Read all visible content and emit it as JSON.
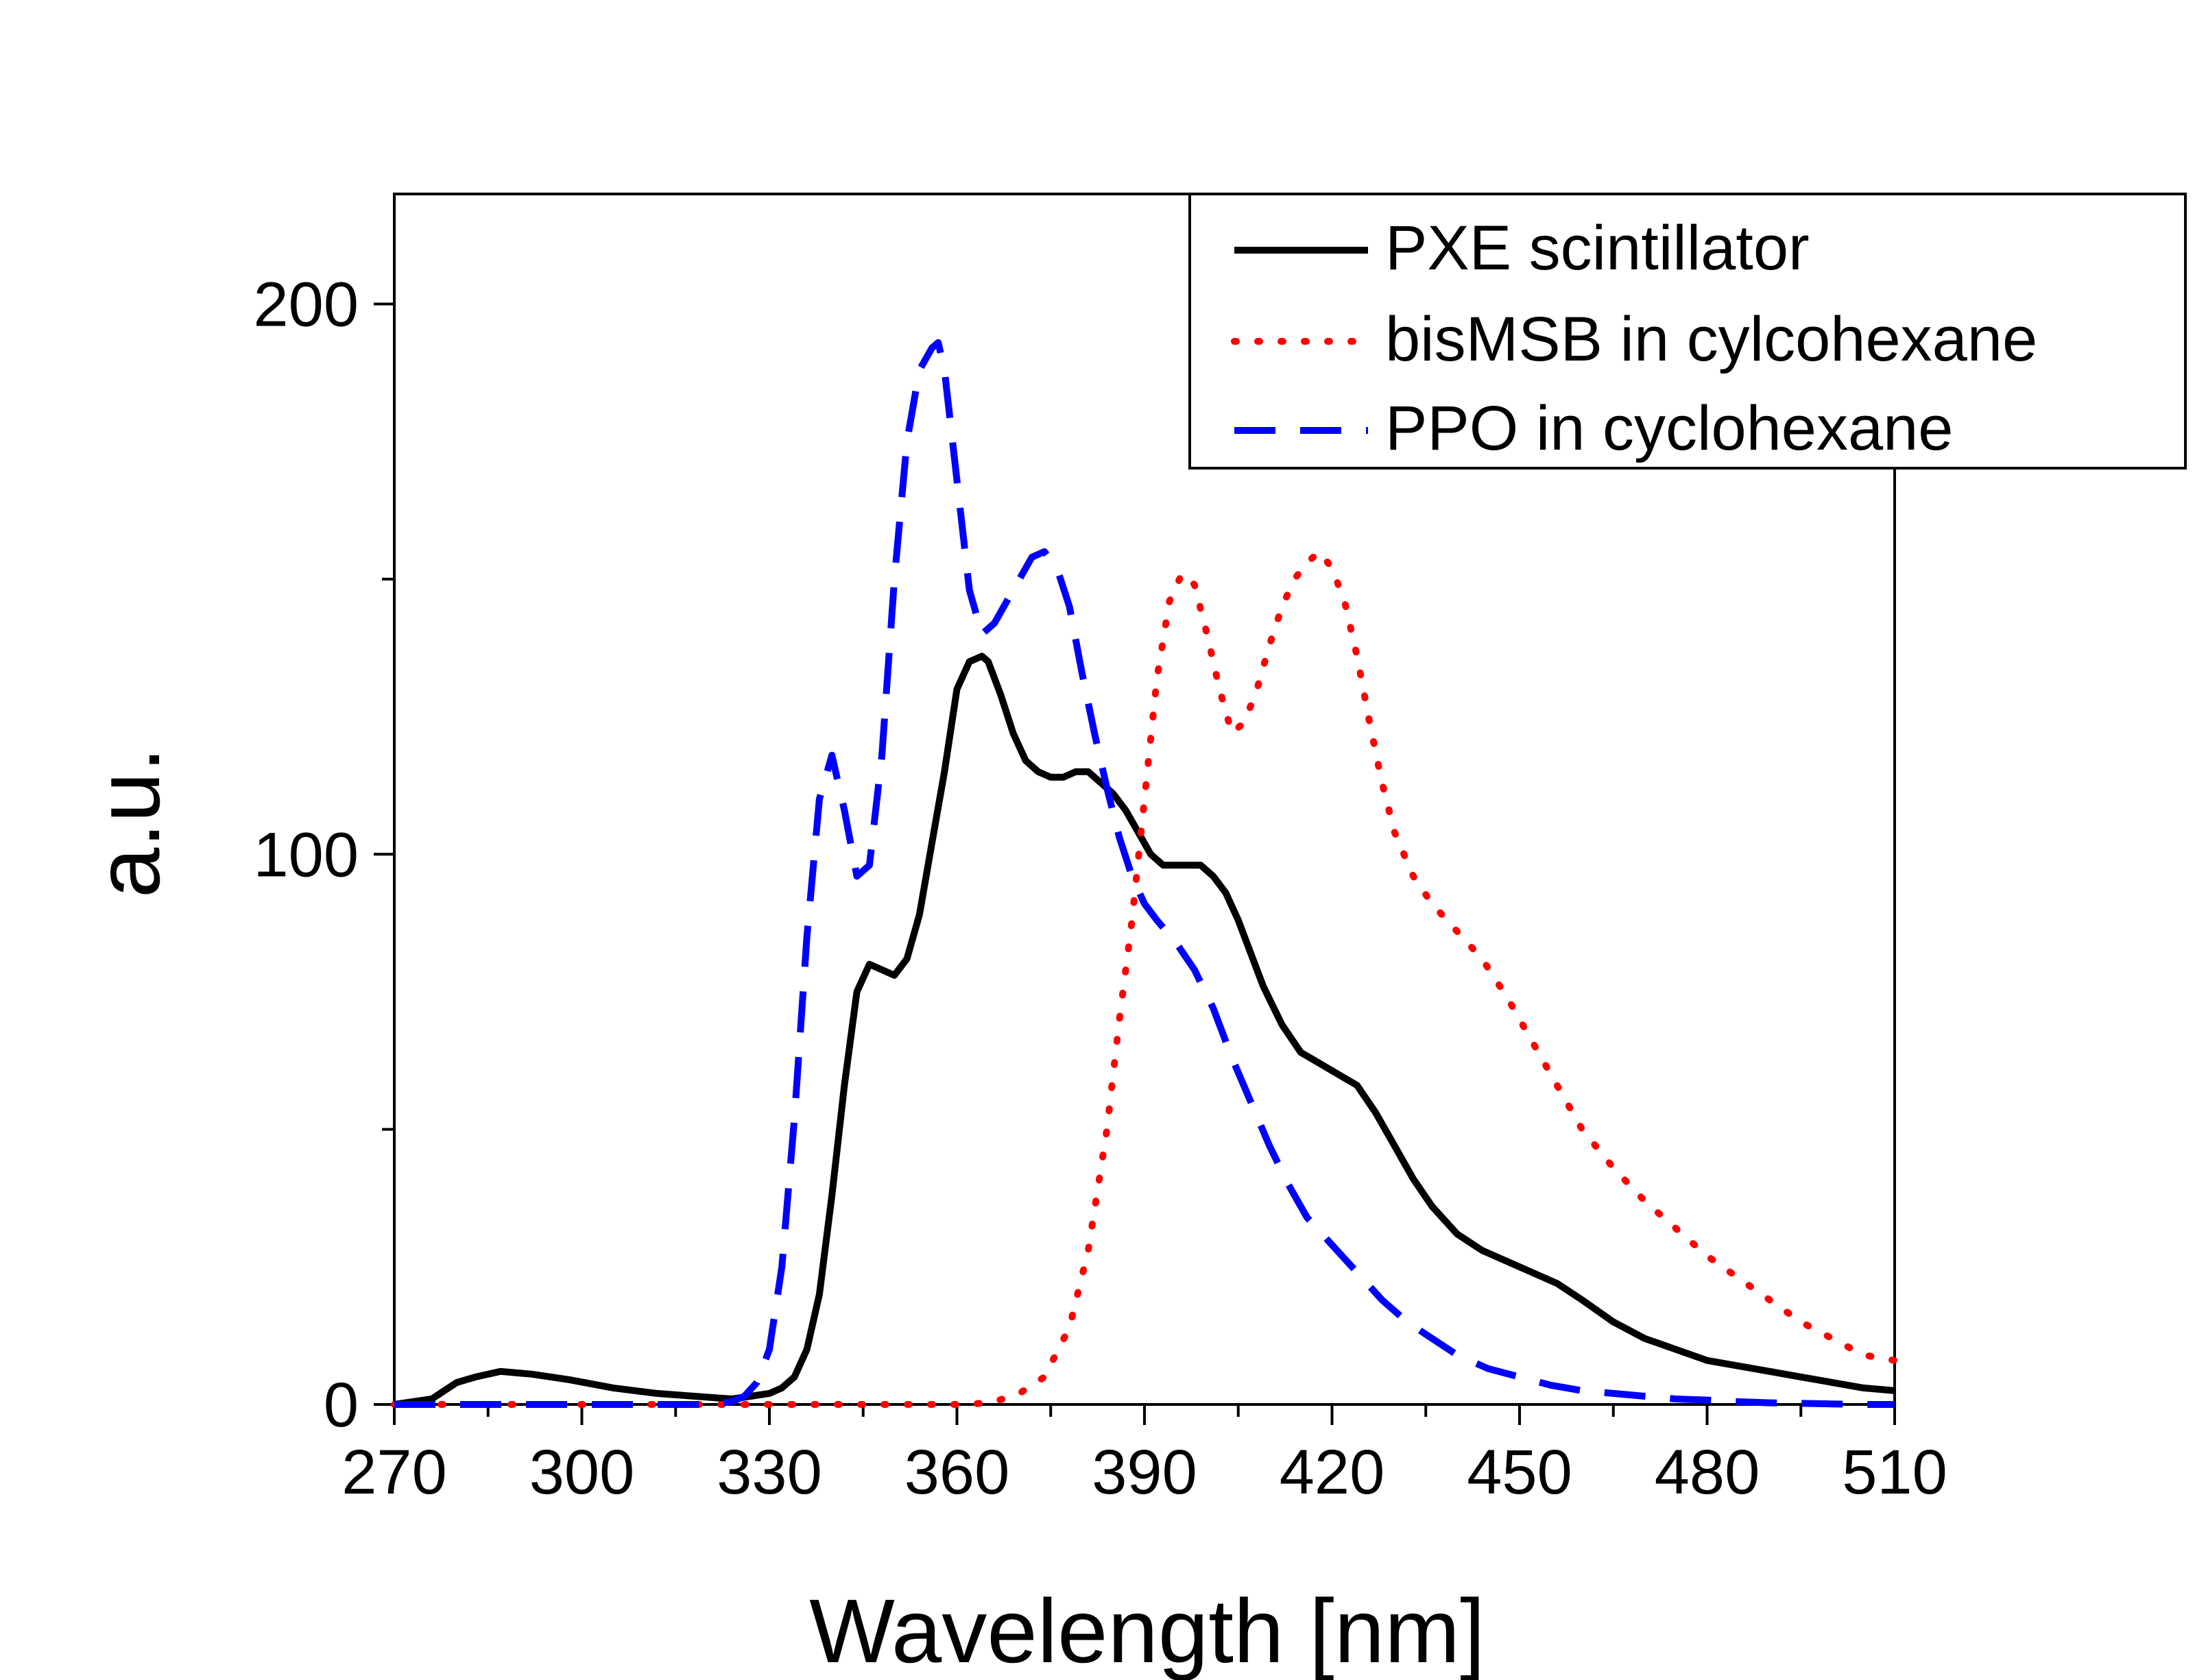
{
  "chart_data": {
    "type": "line",
    "title": "",
    "xlabel": "Wavelength [nm]",
    "ylabel": "a.u.",
    "xlim": [
      270,
      510
    ],
    "ylim": [
      0,
      220
    ],
    "xticks": [
      270,
      300,
      330,
      360,
      390,
      420,
      450,
      480,
      510
    ],
    "xtick_labels": [
      "270",
      "300",
      "330",
      "360",
      "390",
      "420",
      "450",
      "480",
      "510"
    ],
    "yticks": [
      0,
      100,
      200
    ],
    "ytick_labels": [
      "0",
      "100",
      "200"
    ],
    "legend_position": "top-right",
    "series": [
      {
        "name": "PXE scintillator",
        "color": "#000000",
        "style": "solid",
        "x": [
          270,
          276,
          280,
          283,
          287,
          292,
          298,
          305,
          312,
          318,
          324,
          327,
          330,
          332,
          334,
          336,
          338,
          340,
          342,
          344,
          346,
          348,
          350,
          352,
          354,
          356,
          358,
          360,
          362,
          364,
          365,
          367,
          369,
          371,
          373,
          375,
          377,
          379,
          381,
          383,
          385,
          387,
          389,
          391,
          393,
          395,
          397,
          399,
          401,
          403,
          405,
          407,
          409,
          412,
          415,
          418,
          421,
          424,
          427,
          430,
          433,
          436,
          440,
          444,
          448,
          452,
          456,
          460,
          465,
          470,
          475,
          480,
          485,
          490,
          495,
          500,
          505,
          510
        ],
        "y": [
          0,
          1,
          4,
          5,
          6,
          5.5,
          4.5,
          3,
          2,
          1.5,
          1,
          1.5,
          2,
          3,
          5,
          10,
          20,
          38,
          58,
          75,
          80,
          79,
          78,
          81,
          89,
          102,
          115,
          130,
          135,
          136,
          135,
          129,
          122,
          117,
          115,
          114,
          114,
          115,
          115,
          113,
          111,
          108,
          104,
          100,
          98,
          98,
          98,
          98,
          96,
          93,
          88,
          82,
          76,
          69,
          64,
          62,
          60,
          58,
          53,
          47,
          41,
          36,
          31,
          28,
          26,
          24,
          22,
          19,
          15,
          12,
          10,
          8,
          7,
          6,
          5,
          4,
          3,
          2.5
        ]
      },
      {
        "name": "bisMSB in cylcohexane",
        "color": "#ff0000",
        "style": "dotted",
        "x": [
          270,
          300,
          330,
          355,
          362,
          366,
          370,
          374,
          378,
          381,
          384,
          386,
          388,
          390,
          392,
          394,
          396,
          398,
          400,
          402,
          404,
          406,
          408,
          410,
          412,
          414,
          416,
          418,
          420,
          422,
          424,
          426,
          428,
          430,
          433,
          436,
          440,
          444,
          448,
          452,
          456,
          460,
          465,
          470,
          475,
          480,
          485,
          490,
          495,
          500,
          505,
          510
        ],
        "y": [
          0,
          0,
          0,
          0,
          0,
          0.5,
          2,
          5,
          14,
          28,
          50,
          70,
          88,
          110,
          132,
          146,
          151,
          149,
          140,
          130,
          122,
          124,
          130,
          138,
          145,
          150,
          153,
          155,
          152,
          146,
          136,
          124,
          113,
          104,
          96,
          91,
          86,
          81,
          74,
          66,
          58,
          50,
          43,
          37,
          32,
          27,
          23,
          19,
          15,
          12,
          9,
          8
        ]
      },
      {
        "name": "PPO in cyclohexane",
        "color": "#0000ff",
        "style": "dashed",
        "x": [
          270,
          300,
          320,
          324,
          326,
          328,
          330,
          332,
          334,
          336,
          338,
          340,
          342,
          344,
          346,
          348,
          350,
          352,
          354,
          356,
          357,
          358,
          360,
          362,
          364,
          366,
          368,
          370,
          372,
          374,
          376,
          378,
          380,
          382,
          384,
          386,
          388,
          390,
          392,
          395,
          398,
          401,
          404,
          407,
          410,
          413,
          416,
          420,
          424,
          428,
          432,
          436,
          440,
          445,
          450,
          455,
          460,
          465,
          470,
          475,
          480,
          485,
          490,
          495,
          500,
          505,
          510
        ],
        "y": [
          0,
          0,
          0,
          0.5,
          1.5,
          4,
          10,
          25,
          52,
          85,
          110,
          118,
          108,
          96,
          98,
          118,
          150,
          175,
          188,
          192,
          193,
          188,
          168,
          148,
          140,
          142,
          146,
          150,
          154,
          155,
          152,
          145,
          133,
          122,
          112,
          103,
          96,
          91,
          88,
          84,
          79,
          72,
          63,
          55,
          47,
          40,
          34,
          29,
          24,
          19,
          15,
          12,
          9,
          6.5,
          5,
          3.5,
          2.5,
          2,
          1.5,
          1,
          0.8,
          0.5,
          0.3,
          0.2,
          0.1,
          0,
          0
        ]
      }
    ]
  }
}
